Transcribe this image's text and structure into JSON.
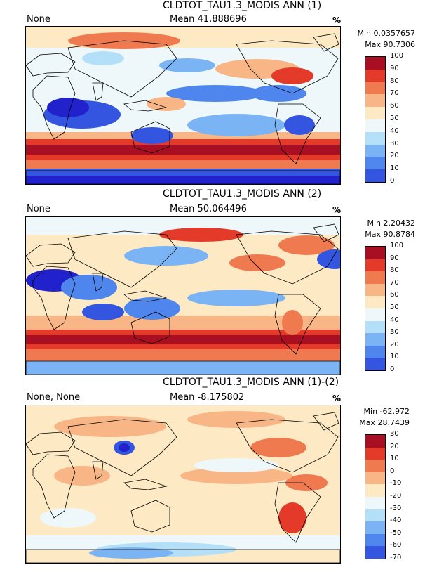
{
  "colors": {
    "levels": [
      "#2222cc",
      "#3355e0",
      "#4f86ee",
      "#7ab4f4",
      "#b3e0f8",
      "#eef8fb",
      "#fde9c4",
      "#f8b585",
      "#f07a50",
      "#e33a2a",
      "#a80f22"
    ]
  },
  "panels": [
    {
      "title": "CLDTOT_TAU1.3_MODIS ANN (1)",
      "left_label": "None",
      "mean": "Mean 41.888696",
      "units": "%",
      "min": "Min 0.0357657",
      "max": "Max 90.7306",
      "ticks": [
        "100",
        "90",
        "80",
        "70",
        "60",
        "50",
        "40",
        "30",
        "20",
        "10",
        "0"
      ],
      "pattern": "p1"
    },
    {
      "title": "CLDTOT_TAU1.3_MODIS ANN (2)",
      "left_label": "None",
      "mean": "Mean 50.064496",
      "units": "%",
      "min": "Min 2.20432",
      "max": "Max 90.8784",
      "ticks": [
        "100",
        "90",
        "80",
        "70",
        "60",
        "50",
        "40",
        "30",
        "20",
        "10",
        "0"
      ],
      "pattern": "p2"
    },
    {
      "title": "CLDTOT_TAU1.3_MODIS ANN (1)-(2)",
      "left_label": "None, None",
      "mean": "Mean -8.175802",
      "units": "%",
      "min": "Min -62.972",
      "max": "Max 28.7439",
      "ticks": [
        "30",
        "20",
        "10",
        "0",
        "-10",
        "-20",
        "-30",
        "-40",
        "-50",
        "-60",
        "-70"
      ],
      "pattern": "p3"
    }
  ]
}
